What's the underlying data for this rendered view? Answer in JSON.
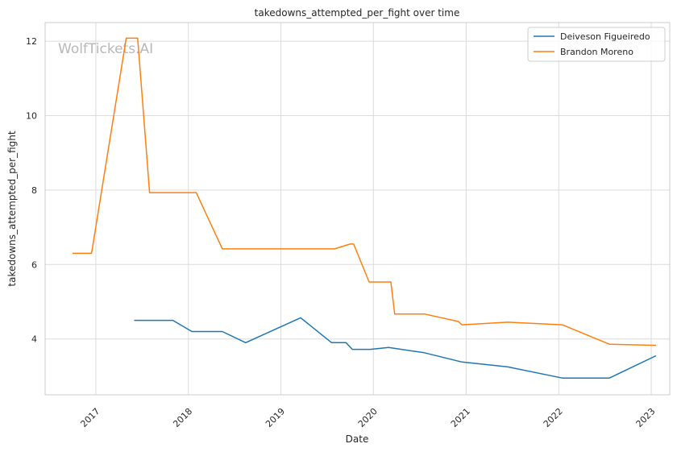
{
  "chart_data": {
    "type": "line",
    "title": "takedowns_attempted_per_fight over time",
    "xlabel": "Date",
    "ylabel": "takedowns_attempted_per_fight",
    "watermark": "WolfTickets.AI",
    "x_ticks": [
      "2017",
      "2018",
      "2019",
      "2020",
      "2021",
      "2022",
      "2023"
    ],
    "y_ticks": [
      4,
      6,
      8,
      10,
      12
    ],
    "xlim": [
      "2016-06-15",
      "2023-03-15"
    ],
    "ylim": [
      2.5,
      12.5
    ],
    "grid": true,
    "legend_position": "top-right",
    "series": [
      {
        "name": "Deiveson Figueiredo",
        "color": "#1f77b4",
        "points": [
          [
            "2017-06-01",
            4.5
          ],
          [
            "2017-11-01",
            4.5
          ],
          [
            "2018-01-15",
            4.2
          ],
          [
            "2018-05-15",
            4.2
          ],
          [
            "2018-08-15",
            3.9
          ],
          [
            "2019-03-20",
            4.57
          ],
          [
            "2019-07-20",
            3.9
          ],
          [
            "2019-09-15",
            3.9
          ],
          [
            "2019-10-10",
            3.72
          ],
          [
            "2019-12-20",
            3.72
          ],
          [
            "2020-03-01",
            3.77
          ],
          [
            "2020-07-20",
            3.63
          ],
          [
            "2020-12-15",
            3.38
          ],
          [
            "2021-06-15",
            3.25
          ],
          [
            "2022-01-15",
            2.95
          ],
          [
            "2022-07-20",
            2.95
          ],
          [
            "2023-01-20",
            3.55
          ]
        ]
      },
      {
        "name": "Brandon Moreno",
        "color": "#ff7f0e",
        "points": [
          [
            "2016-10-01",
            6.3
          ],
          [
            "2016-12-15",
            6.3
          ],
          [
            "2017-05-01",
            12.08
          ],
          [
            "2017-06-15",
            12.08
          ],
          [
            "2017-08-01",
            7.93
          ],
          [
            "2018-02-01",
            7.93
          ],
          [
            "2018-05-15",
            6.42
          ],
          [
            "2019-08-01",
            6.42
          ],
          [
            "2019-10-01",
            6.55
          ],
          [
            "2019-10-15",
            6.55
          ],
          [
            "2019-12-15",
            5.53
          ],
          [
            "2020-03-10",
            5.53
          ],
          [
            "2020-03-25",
            4.67
          ],
          [
            "2020-07-20",
            4.67
          ],
          [
            "2020-12-01",
            4.47
          ],
          [
            "2020-12-15",
            4.38
          ],
          [
            "2021-06-15",
            4.45
          ],
          [
            "2022-01-15",
            4.38
          ],
          [
            "2022-07-20",
            3.86
          ],
          [
            "2023-01-20",
            3.83
          ]
        ]
      }
    ]
  }
}
